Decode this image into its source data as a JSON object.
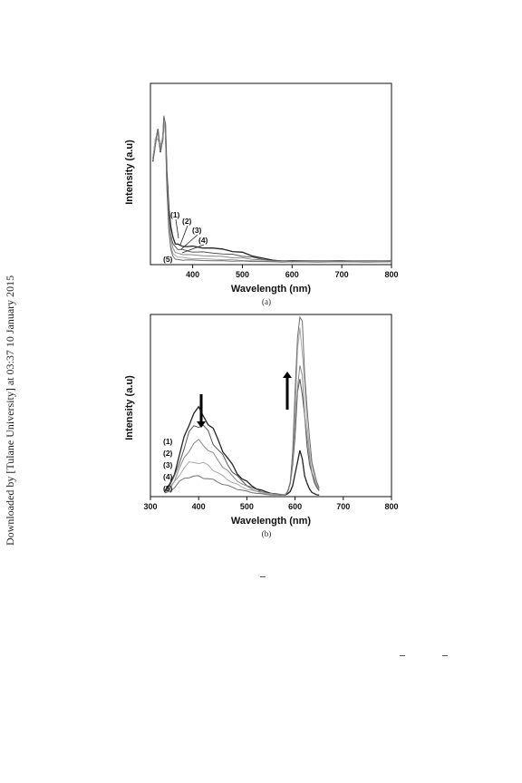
{
  "side_note": "Downloaded by [Tulane University] at 03:37 10 January 2015",
  "chart_data": [
    {
      "type": "line",
      "panel_label": "(a)",
      "xlabel": "Wavelength (nm)",
      "ylabel": "Intensity (a.u)",
      "xlim": [
        315,
        800
      ],
      "ylim": [
        0,
        1
      ],
      "xticks": [
        400,
        500,
        600,
        700,
        800
      ],
      "curve_labels": [
        "(1)",
        "(2)",
        "(3)",
        "(4)",
        "(5)"
      ],
      "series": [
        {
          "x": [
            320,
            325,
            330,
            335,
            340,
            342,
            345,
            348,
            352,
            356,
            360,
            365,
            370,
            380,
            390,
            400,
            420,
            440,
            460,
            480,
            500,
            520,
            540,
            560,
            580,
            600,
            650,
            700,
            750,
            800
          ],
          "y": [
            0.58,
            0.68,
            0.72,
            0.64,
            0.7,
            0.81,
            0.75,
            0.5,
            0.3,
            0.2,
            0.15,
            0.12,
            0.11,
            0.105,
            0.1,
            0.098,
            0.095,
            0.09,
            0.085,
            0.075,
            0.065,
            0.05,
            0.035,
            0.025,
            0.02,
            0.02,
            0.02,
            0.02,
            0.02,
            0.02
          ]
        },
        {
          "x": [
            320,
            325,
            330,
            335,
            340,
            342,
            345,
            348,
            352,
            356,
            360,
            365,
            370,
            380,
            390,
            400,
            420,
            440,
            460,
            480,
            500,
            520,
            540,
            560,
            580,
            600,
            650,
            700,
            750,
            800
          ],
          "y": [
            0.58,
            0.68,
            0.72,
            0.64,
            0.7,
            0.81,
            0.75,
            0.48,
            0.27,
            0.17,
            0.12,
            0.095,
            0.085,
            0.08,
            0.075,
            0.072,
            0.068,
            0.064,
            0.06,
            0.055,
            0.048,
            0.04,
            0.03,
            0.022,
            0.02,
            0.02,
            0.02,
            0.02,
            0.02,
            0.02
          ]
        },
        {
          "x": [
            320,
            325,
            330,
            335,
            340,
            342,
            345,
            348,
            352,
            356,
            360,
            365,
            370,
            380,
            390,
            400,
            420,
            440,
            460,
            480,
            500,
            520,
            540,
            560,
            580,
            600,
            650,
            700,
            750,
            800
          ],
          "y": [
            0.58,
            0.68,
            0.72,
            0.64,
            0.7,
            0.81,
            0.75,
            0.46,
            0.24,
            0.14,
            0.09,
            0.07,
            0.062,
            0.058,
            0.055,
            0.052,
            0.05,
            0.047,
            0.044,
            0.04,
            0.036,
            0.03,
            0.025,
            0.02,
            0.018,
            0.018,
            0.018,
            0.018,
            0.018,
            0.018
          ]
        },
        {
          "x": [
            320,
            325,
            330,
            335,
            340,
            342,
            345,
            348,
            352,
            356,
            360,
            365,
            370,
            380,
            390,
            400,
            420,
            440,
            460,
            480,
            500,
            520,
            540,
            560,
            580,
            600,
            650,
            700,
            750,
            800
          ],
          "y": [
            0.58,
            0.68,
            0.72,
            0.64,
            0.7,
            0.81,
            0.75,
            0.44,
            0.21,
            0.11,
            0.065,
            0.048,
            0.042,
            0.038,
            0.036,
            0.034,
            0.032,
            0.03,
            0.028,
            0.026,
            0.024,
            0.021,
            0.019,
            0.017,
            0.016,
            0.016,
            0.016,
            0.016,
            0.016,
            0.016
          ]
        },
        {
          "x": [
            320,
            325,
            330,
            335,
            340,
            342,
            345,
            348,
            352,
            356,
            360,
            365,
            370,
            380,
            390,
            400,
            420,
            440,
            460,
            480,
            500,
            520,
            540,
            560,
            580,
            600,
            650,
            700,
            750,
            800
          ],
          "y": [
            0.58,
            0.68,
            0.72,
            0.64,
            0.7,
            0.81,
            0.75,
            0.42,
            0.18,
            0.08,
            0.045,
            0.032,
            0.028,
            0.026,
            0.025,
            0.024,
            0.023,
            0.022,
            0.021,
            0.02,
            0.019,
            0.018,
            0.017,
            0.016,
            0.015,
            0.015,
            0.015,
            0.015,
            0.015,
            0.015
          ]
        }
      ]
    },
    {
      "type": "line",
      "panel_label": "(b)",
      "xlabel": "Wavelength (nm)",
      "ylabel": "Intensity (a.u)",
      "xlim": [
        300,
        800
      ],
      "ylim": [
        0,
        1
      ],
      "xticks": [
        300,
        400,
        500,
        600,
        700,
        800
      ],
      "curve_labels": [
        "(1)",
        "(2)",
        "(3)",
        "(4)",
        "(5)"
      ],
      "annotations": [
        "arrow-down at ~400 nm",
        "arrow-up at ~590 nm"
      ],
      "series": [
        {
          "x": [
            330,
            340,
            350,
            360,
            370,
            380,
            390,
            400,
            410,
            420,
            430,
            440,
            450,
            460,
            470,
            480,
            490,
            500,
            510,
            520,
            530,
            540,
            550,
            560,
            570,
            580,
            585,
            590,
            595,
            600,
            605,
            610,
            615,
            620,
            625,
            630,
            635,
            640,
            645,
            650
          ],
          "y": [
            0.03,
            0.07,
            0.13,
            0.22,
            0.32,
            0.41,
            0.46,
            0.47,
            0.45,
            0.41,
            0.36,
            0.31,
            0.26,
            0.21,
            0.17,
            0.13,
            0.1,
            0.08,
            0.06,
            0.045,
            0.035,
            0.025,
            0.02,
            0.015,
            0.01,
            0.01,
            0.015,
            0.03,
            0.06,
            0.12,
            0.2,
            0.25,
            0.2,
            0.12,
            0.07,
            0.04,
            0.025,
            0.015,
            0.01,
            0.01
          ]
        },
        {
          "x": [
            330,
            340,
            350,
            360,
            370,
            380,
            390,
            400,
            410,
            420,
            430,
            440,
            450,
            460,
            470,
            480,
            490,
            500,
            510,
            520,
            530,
            540,
            550,
            560,
            570,
            580,
            585,
            590,
            595,
            600,
            605,
            610,
            615,
            620,
            625,
            630,
            635,
            640,
            645,
            650
          ],
          "y": [
            0.03,
            0.06,
            0.11,
            0.19,
            0.27,
            0.34,
            0.39,
            0.4,
            0.38,
            0.35,
            0.3,
            0.26,
            0.22,
            0.18,
            0.14,
            0.11,
            0.085,
            0.065,
            0.05,
            0.038,
            0.03,
            0.022,
            0.017,
            0.013,
            0.01,
            0.012,
            0.03,
            0.07,
            0.17,
            0.35,
            0.55,
            0.65,
            0.58,
            0.42,
            0.28,
            0.18,
            0.12,
            0.08,
            0.05,
            0.03
          ]
        },
        {
          "x": [
            330,
            340,
            350,
            360,
            370,
            380,
            390,
            400,
            410,
            420,
            430,
            440,
            450,
            460,
            470,
            480,
            490,
            500,
            510,
            520,
            530,
            540,
            550,
            560,
            570,
            580,
            585,
            590,
            595,
            600,
            605,
            610,
            615,
            620,
            625,
            630,
            635,
            640,
            645,
            650
          ],
          "y": [
            0.02,
            0.05,
            0.09,
            0.15,
            0.21,
            0.26,
            0.29,
            0.3,
            0.29,
            0.26,
            0.23,
            0.2,
            0.17,
            0.14,
            0.11,
            0.09,
            0.07,
            0.055,
            0.042,
            0.032,
            0.025,
            0.019,
            0.015,
            0.012,
            0.01,
            0.012,
            0.03,
            0.08,
            0.2,
            0.4,
            0.62,
            0.72,
            0.64,
            0.47,
            0.32,
            0.21,
            0.14,
            0.09,
            0.06,
            0.04
          ]
        },
        {
          "x": [
            330,
            340,
            350,
            360,
            370,
            380,
            390,
            400,
            410,
            420,
            430,
            440,
            450,
            460,
            470,
            480,
            490,
            500,
            510,
            520,
            530,
            540,
            550,
            560,
            570,
            580,
            585,
            590,
            595,
            600,
            605,
            610,
            615,
            620,
            625,
            630,
            635,
            640,
            645,
            650
          ],
          "y": [
            0.02,
            0.04,
            0.08,
            0.12,
            0.16,
            0.18,
            0.19,
            0.19,
            0.18,
            0.17,
            0.15,
            0.13,
            0.11,
            0.095,
            0.08,
            0.065,
            0.052,
            0.042,
            0.034,
            0.027,
            0.021,
            0.017,
            0.014,
            0.011,
            0.01,
            0.012,
            0.03,
            0.08,
            0.22,
            0.48,
            0.78,
            0.92,
            0.82,
            0.6,
            0.4,
            0.26,
            0.17,
            0.11,
            0.07,
            0.045
          ]
        },
        {
          "x": [
            330,
            340,
            350,
            360,
            370,
            380,
            390,
            400,
            410,
            420,
            430,
            440,
            450,
            460,
            470,
            480,
            490,
            500,
            510,
            520,
            530,
            540,
            550,
            560,
            570,
            580,
            585,
            590,
            595,
            600,
            605,
            610,
            615,
            620,
            625,
            630,
            635,
            640,
            645,
            650
          ],
          "y": [
            0.02,
            0.03,
            0.05,
            0.08,
            0.1,
            0.11,
            0.11,
            0.11,
            0.105,
            0.1,
            0.09,
            0.08,
            0.07,
            0.06,
            0.05,
            0.042,
            0.035,
            0.028,
            0.023,
            0.019,
            0.015,
            0.012,
            0.01,
            0.009,
            0.008,
            0.01,
            0.03,
            0.08,
            0.25,
            0.55,
            0.9,
            1.0,
            0.92,
            0.7,
            0.48,
            0.31,
            0.2,
            0.13,
            0.08,
            0.05
          ]
        }
      ]
    }
  ],
  "colors": {
    "curves": [
      "#222222",
      "#555555",
      "#888888",
      "#a8a8a8",
      "#6f6f6f"
    ],
    "axis": "#111111"
  }
}
